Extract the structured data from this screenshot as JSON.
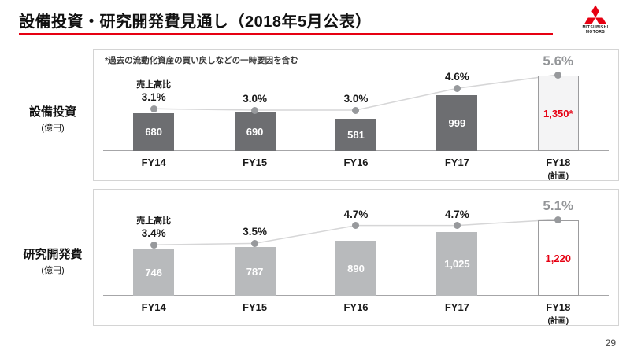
{
  "header": {
    "title": "設備投資・研究開発費見通し（2018年5月公表）",
    "logo_lines": [
      "MITSUBISHI",
      "MOTORS"
    ],
    "accent_color": "#e60012"
  },
  "footer": {
    "page_number": "29"
  },
  "chart_data": [
    {
      "type": "bar+line",
      "title": "設備投資",
      "unit": "(億円)",
      "note": "*過去の流動化資産の買い戻しなどの一時要因を含む",
      "ratio_label": "売上高比",
      "categories": [
        "FY14",
        "FY15",
        "FY16",
        "FY17",
        "FY18"
      ],
      "final_category_note": "(計画)",
      "bar_values": [
        680,
        690,
        581,
        999,
        1350
      ],
      "bar_labels": [
        "680",
        "690",
        "581",
        "999",
        "1,350*"
      ],
      "percent_values": [
        3.1,
        3.0,
        3.0,
        4.6,
        5.6
      ],
      "percent_labels": [
        "3.1%",
        "3.0%",
        "3.0%",
        "4.6%",
        "5.6%"
      ],
      "bar_color": "#6d6e71",
      "value_color": "#ffffff",
      "final_bar_fill": "#f4f4f5",
      "final_bar_border": "#9c9c9e",
      "final_value_color": "#e60012",
      "final_percent_color": "#939598",
      "dot_color": "#97999c",
      "line_color": "#d6d6d7"
    },
    {
      "type": "bar+line",
      "title": "研究開発費",
      "unit": "(億円)",
      "ratio_label": "売上高比",
      "categories": [
        "FY14",
        "FY15",
        "FY16",
        "FY17",
        "FY18"
      ],
      "final_category_note": "(計画)",
      "bar_values": [
        746,
        787,
        890,
        1025,
        1220
      ],
      "bar_labels": [
        "746",
        "787",
        "890",
        "1,025",
        "1,220"
      ],
      "percent_values": [
        3.4,
        3.5,
        4.7,
        4.7,
        5.1
      ],
      "percent_labels": [
        "3.4%",
        "3.5%",
        "4.7%",
        "4.7%",
        "5.1%"
      ],
      "bar_color": "#b8babc",
      "value_color": "#ffffff",
      "final_bar_fill": "#ffffff",
      "final_bar_border": "#9c9c9e",
      "final_value_color": "#e60012",
      "final_percent_color": "#939598",
      "dot_color": "#97999c",
      "line_color": "#d6d6d7"
    }
  ]
}
